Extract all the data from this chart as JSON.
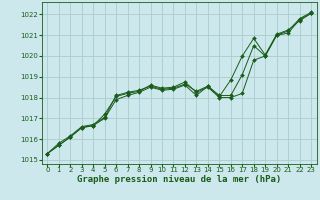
{
  "title": "Graphe pression niveau de la mer (hPa)",
  "bg_color": "#cce8ec",
  "grid_color": "#aacccc",
  "line_color": "#1a5c1a",
  "xlim": [
    -0.5,
    23.5
  ],
  "ylim": [
    1014.8,
    1022.6
  ],
  "yticks": [
    1015,
    1016,
    1017,
    1018,
    1019,
    1020,
    1021,
    1022
  ],
  "xticks": [
    0,
    1,
    2,
    3,
    4,
    5,
    6,
    7,
    8,
    9,
    10,
    11,
    12,
    13,
    14,
    15,
    16,
    17,
    18,
    19,
    20,
    21,
    22,
    23
  ],
  "series1": [
    1015.3,
    1015.7,
    1016.1,
    1016.55,
    1016.65,
    1017.2,
    1018.05,
    1018.2,
    1018.3,
    1018.6,
    1018.45,
    1018.5,
    1018.75,
    1018.25,
    1018.5,
    1018.0,
    1018.0,
    1018.2,
    1019.8,
    1020.0,
    1021.0,
    1021.1,
    1021.75,
    1022.05
  ],
  "series2": [
    1015.3,
    1015.7,
    1016.1,
    1016.55,
    1016.65,
    1017.0,
    1017.9,
    1018.1,
    1018.25,
    1018.5,
    1018.35,
    1018.4,
    1018.6,
    1018.1,
    1018.55,
    1018.1,
    1018.1,
    1019.1,
    1020.5,
    1020.0,
    1021.0,
    1021.2,
    1021.8,
    1022.1
  ],
  "series3": [
    1015.3,
    1015.8,
    1016.15,
    1016.6,
    1016.7,
    1017.05,
    1018.1,
    1018.25,
    1018.35,
    1018.55,
    1018.4,
    1018.45,
    1018.65,
    1018.3,
    1018.55,
    1018.05,
    1018.85,
    1020.0,
    1020.85,
    1020.05,
    1021.05,
    1021.25,
    1021.7,
    1022.05
  ],
  "marker_style": "D",
  "marker_size": 2.0,
  "linewidth": 0.7,
  "tick_fontsize": 5.0,
  "xlabel_fontsize": 6.5
}
